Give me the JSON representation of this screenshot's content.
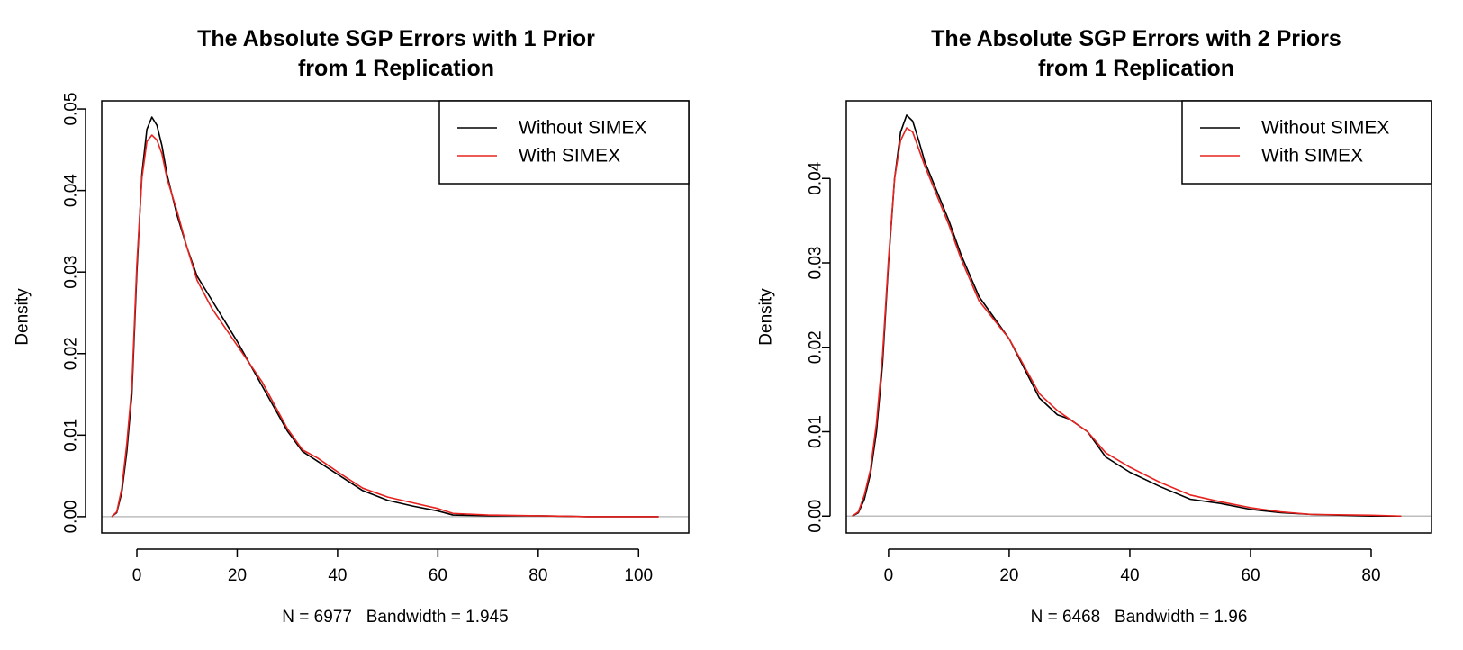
{
  "chart_data": [
    {
      "type": "line",
      "title": [
        "The Absolute SGP Errors with 1 Prior",
        "from 1 Replication"
      ],
      "xlabel": "N = 6977   Bandwidth = 1.945",
      "ylabel": "Density",
      "xlim": [
        -7,
        110
      ],
      "ylim": [
        -0.002,
        0.051
      ],
      "xticks": [
        0,
        20,
        40,
        60,
        80,
        100
      ],
      "yticks": [
        0.0,
        0.01,
        0.02,
        0.03,
        0.04,
        0.05
      ],
      "ytick_labels": [
        "0.00",
        "0.01",
        "0.02",
        "0.03",
        "0.04",
        "0.05"
      ],
      "baseline": 0,
      "legend": {
        "position": "top-right",
        "entries": [
          "Without SIMEX",
          "With SIMEX"
        ]
      },
      "series": [
        {
          "name": "Without SIMEX",
          "color": "#000000",
          "x": [
            -5,
            -4,
            -3,
            -2,
            -1,
            0,
            1,
            2,
            3,
            4,
            5,
            6,
            8,
            10,
            12,
            15,
            20,
            25,
            30,
            33,
            36,
            40,
            45,
            50,
            55,
            60,
            63,
            70,
            80,
            90,
            104
          ],
          "y": [
            0.0,
            0.0005,
            0.003,
            0.008,
            0.015,
            0.03,
            0.042,
            0.0475,
            0.049,
            0.048,
            0.0455,
            0.042,
            0.037,
            0.033,
            0.0295,
            0.0265,
            0.0215,
            0.016,
            0.0105,
            0.008,
            0.0068,
            0.0052,
            0.0032,
            0.002,
            0.0013,
            0.0007,
            0.0002,
            0.0001,
            0.0001,
            0.0,
            0.0
          ]
        },
        {
          "name": "With SIMEX",
          "color": "#e8231f",
          "x": [
            -5,
            -4,
            -3,
            -2,
            -1,
            0,
            1,
            2,
            3,
            4,
            5,
            6,
            8,
            10,
            12,
            15,
            20,
            25,
            30,
            33,
            36,
            40,
            45,
            50,
            55,
            60,
            63,
            70,
            80,
            90,
            104
          ],
          "y": [
            0.0,
            0.0006,
            0.0035,
            0.009,
            0.016,
            0.031,
            0.0415,
            0.046,
            0.0468,
            0.0462,
            0.0445,
            0.0415,
            0.0375,
            0.033,
            0.029,
            0.0255,
            0.021,
            0.0165,
            0.0108,
            0.0082,
            0.0072,
            0.0055,
            0.0035,
            0.0024,
            0.0017,
            0.001,
            0.0004,
            0.0002,
            0.0001,
            0.0,
            0.0
          ]
        }
      ]
    },
    {
      "type": "line",
      "title": [
        "The Absolute SGP Errors with 2 Priors",
        "from 1 Replication"
      ],
      "xlabel": "N = 6468   Bandwidth = 1.96",
      "ylabel": "Density",
      "xlim": [
        -7,
        90
      ],
      "ylim": [
        -0.002,
        0.0492
      ],
      "xticks": [
        0,
        20,
        40,
        60,
        80
      ],
      "yticks": [
        0.0,
        0.01,
        0.02,
        0.03,
        0.04
      ],
      "ytick_labels": [
        "0.00",
        "0.01",
        "0.02",
        "0.03",
        "0.04"
      ],
      "baseline": 0,
      "legend": {
        "position": "top-right",
        "entries": [
          "Without SIMEX",
          "With SIMEX"
        ]
      },
      "series": [
        {
          "name": "Without SIMEX",
          "color": "#000000",
          "x": [
            -6,
            -5,
            -4,
            -3,
            -2,
            -1,
            0,
            1,
            2,
            3,
            4,
            5,
            6,
            8,
            10,
            12,
            15,
            20,
            25,
            28,
            30,
            33,
            36,
            40,
            45,
            50,
            55,
            60,
            65,
            70,
            80,
            85
          ],
          "y": [
            0.0,
            0.0004,
            0.002,
            0.005,
            0.01,
            0.018,
            0.03,
            0.04,
            0.0455,
            0.0475,
            0.0468,
            0.0445,
            0.042,
            0.0385,
            0.035,
            0.031,
            0.026,
            0.021,
            0.014,
            0.012,
            0.0115,
            0.01,
            0.007,
            0.0052,
            0.0035,
            0.002,
            0.0015,
            0.0008,
            0.0004,
            0.0002,
            0.0,
            0.0
          ]
        },
        {
          "name": "With SIMEX",
          "color": "#e8231f",
          "x": [
            -6,
            -5,
            -4,
            -3,
            -2,
            -1,
            0,
            1,
            2,
            3,
            4,
            5,
            6,
            8,
            10,
            12,
            15,
            20,
            25,
            28,
            30,
            33,
            36,
            40,
            45,
            50,
            55,
            60,
            65,
            70,
            80,
            85
          ],
          "y": [
            0.0,
            0.0005,
            0.0025,
            0.0055,
            0.011,
            0.019,
            0.0305,
            0.04,
            0.0445,
            0.046,
            0.0455,
            0.0435,
            0.0415,
            0.038,
            0.0345,
            0.0305,
            0.0255,
            0.021,
            0.0145,
            0.0125,
            0.0115,
            0.01,
            0.0075,
            0.0058,
            0.004,
            0.0025,
            0.0017,
            0.001,
            0.0005,
            0.0002,
            0.0001,
            0.0
          ]
        }
      ]
    }
  ]
}
